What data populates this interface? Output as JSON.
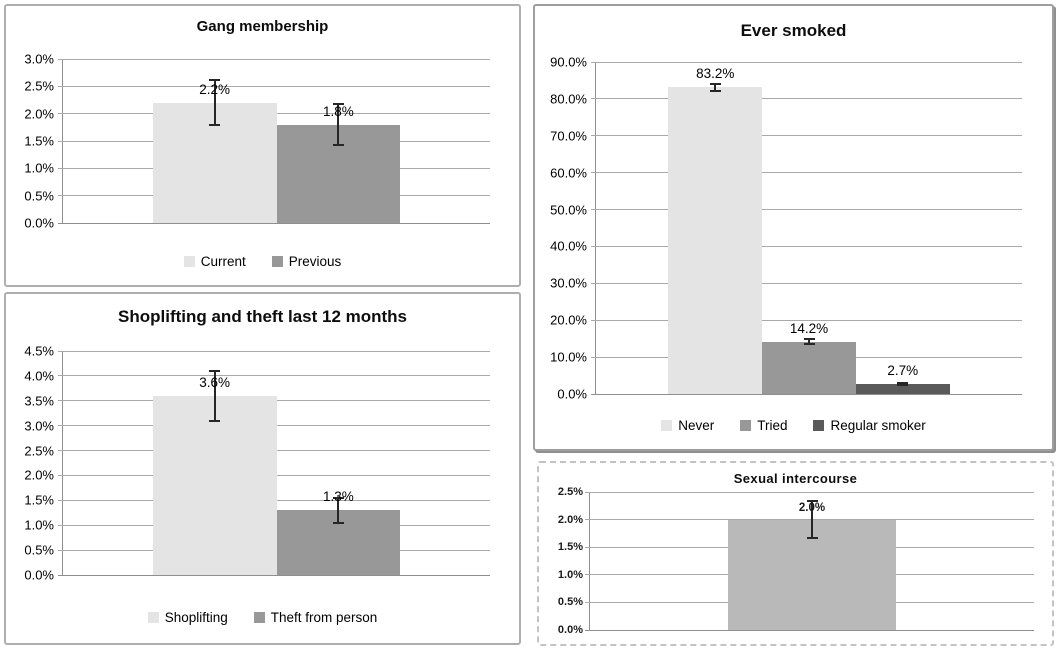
{
  "chart_data": [
    {
      "type": "bar",
      "title": "Gang membership",
      "xlabel": "",
      "ylabel": "",
      "ylim": [
        0,
        3.0
      ],
      "ytick_step": 0.5,
      "tick_decimals": 1,
      "tick_suffix": "%",
      "grid": true,
      "legend_position": "bottom",
      "series": [
        {
          "name": "Current",
          "value": 2.2,
          "label": "2.2%",
          "error_low": 1.77,
          "error_high": 2.63,
          "color": "#e4e4e4"
        },
        {
          "name": "Previous",
          "value": 1.8,
          "label": "1.8%",
          "error_low": 1.4,
          "error_high": 2.2,
          "color": "#989898"
        }
      ]
    },
    {
      "type": "bar",
      "title": "Shoplifting and theft last 12 months",
      "xlabel": "",
      "ylabel": "",
      "ylim": [
        0,
        4.5
      ],
      "ytick_step": 0.5,
      "tick_decimals": 1,
      "tick_suffix": "%",
      "grid": true,
      "legend_position": "bottom",
      "series": [
        {
          "name": "Shoplifting",
          "value": 3.6,
          "label": "3.6%",
          "error_low": 3.08,
          "error_high": 4.12,
          "color": "#e4e4e4"
        },
        {
          "name": "Theft from person",
          "value": 1.3,
          "label": "1.3%",
          "error_low": 1.03,
          "error_high": 1.57,
          "color": "#989898"
        }
      ]
    },
    {
      "type": "bar",
      "title": "Ever smoked",
      "xlabel": "",
      "ylabel": "",
      "ylim": [
        0,
        90
      ],
      "ytick_step": 10,
      "tick_decimals": 1,
      "tick_suffix": "%",
      "grid": true,
      "legend_position": "bottom",
      "series": [
        {
          "name": "Never",
          "value": 83.2,
          "label": "83.2%",
          "error_low": 82.0,
          "error_high": 84.4,
          "color": "#e4e4e4"
        },
        {
          "name": "Tried",
          "value": 14.2,
          "label": "14.2%",
          "error_low": 13.2,
          "error_high": 15.2,
          "color": "#989898"
        },
        {
          "name": "Regular smoker",
          "value": 2.7,
          "label": "2.7%",
          "error_low": 2.2,
          "error_high": 3.2,
          "color": "#5a5a5a"
        }
      ]
    },
    {
      "type": "bar",
      "title": "Sexual intercourse",
      "xlabel": "",
      "ylabel": "",
      "ylim": [
        0,
        2.5
      ],
      "ytick_step": 0.5,
      "tick_decimals": 1,
      "tick_suffix": "%",
      "grid": true,
      "legend_position": "none",
      "series": [
        {
          "name": "",
          "value": 2.0,
          "label": "2.0%",
          "error_low": 1.65,
          "error_high": 2.35,
          "color": "#b9b9b9"
        }
      ]
    }
  ]
}
